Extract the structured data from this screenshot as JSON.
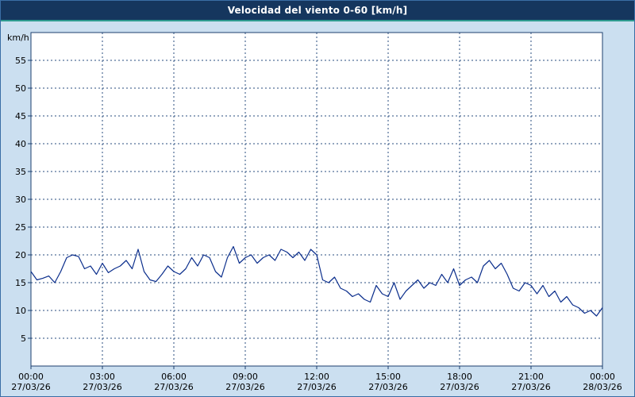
{
  "header": {
    "title": "Velocidad del viento 0-60 [km/h]"
  },
  "colors": {
    "frame_bg": "#cbdff0",
    "frame_border": "#3a6ea5",
    "header_bg": "#15365e",
    "header_text": "#ffffff",
    "accent": "#2e9b8f",
    "plot_bg": "#ffffff",
    "plot_border": "#1c3f6e",
    "grid": "#2a4d7f",
    "line": "#0b2e8c"
  },
  "chart_data": {
    "type": "line",
    "title": "Velocidad del viento 0-60 [km/h]",
    "xlabel": "",
    "ylabel": "km/h",
    "ylim": [
      0,
      60
    ],
    "y_tick_step": 5,
    "y_tick_labels": [
      5,
      10,
      15,
      20,
      25,
      30,
      35,
      40,
      45,
      50,
      55
    ],
    "grid": "dashed",
    "legend_position": "none",
    "x_range_hours": [
      0,
      24
    ],
    "x_ticks": [
      {
        "hour": 0,
        "time": "00:00",
        "date": "27/03/26"
      },
      {
        "hour": 3,
        "time": "03:00",
        "date": "27/03/26"
      },
      {
        "hour": 6,
        "time": "06:00",
        "date": "27/03/26"
      },
      {
        "hour": 9,
        "time": "09:00",
        "date": "27/03/26"
      },
      {
        "hour": 12,
        "time": "12:00",
        "date": "27/03/26"
      },
      {
        "hour": 15,
        "time": "15:00",
        "date": "27/03/26"
      },
      {
        "hour": 18,
        "time": "18:00",
        "date": "27/03/26"
      },
      {
        "hour": 21,
        "time": "21:00",
        "date": "27/03/26"
      },
      {
        "hour": 24,
        "time": "00:00",
        "date": "28/03/26"
      }
    ],
    "series": [
      {
        "name": "Velocidad del viento",
        "color": "#0b2e8c",
        "x_step_minutes": 15,
        "values": [
          17.0,
          15.5,
          15.8,
          16.2,
          15.0,
          17.0,
          19.5,
          20.0,
          19.7,
          17.5,
          18.0,
          16.5,
          18.5,
          16.8,
          17.5,
          18.0,
          19.0,
          17.5,
          21.0,
          17.0,
          15.5,
          15.2,
          16.5,
          18.0,
          17.0,
          16.5,
          17.5,
          19.5,
          18.0,
          20.0,
          19.5,
          17.0,
          16.0,
          19.5,
          21.5,
          18.5,
          19.5,
          20.0,
          18.5,
          19.5,
          20.0,
          19.0,
          21.0,
          20.5,
          19.5,
          20.5,
          19.0,
          21.0,
          20.0,
          15.5,
          15.0,
          16.0,
          14.0,
          13.5,
          12.5,
          13.0,
          12.0,
          11.5,
          14.5,
          13.0,
          12.5,
          15.0,
          12.0,
          13.5,
          14.5,
          15.5,
          14.0,
          15.0,
          14.5,
          16.5,
          15.0,
          17.5,
          14.5,
          15.5,
          16.0,
          15.0,
          18.0,
          19.0,
          17.5,
          18.5,
          16.5,
          14.0,
          13.5,
          15.0,
          14.5,
          13.0,
          14.5,
          12.5,
          13.5,
          11.5,
          12.5,
          11.0,
          10.5,
          9.5,
          10.0,
          9.0,
          10.5
        ]
      }
    ]
  }
}
